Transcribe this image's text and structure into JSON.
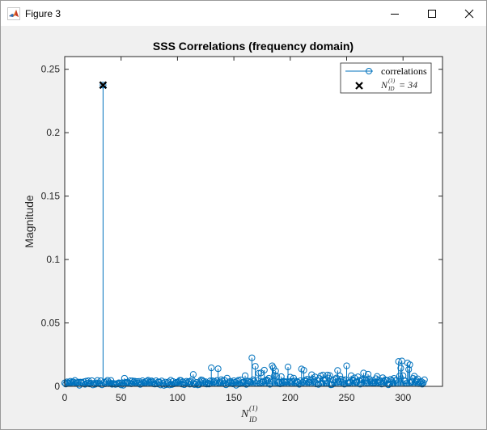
{
  "window": {
    "title": "Figure 3",
    "icons": {
      "app": "matlab-icon",
      "minimize": "minimize-icon",
      "maximize": "maximize-icon",
      "close": "close-icon"
    }
  },
  "chart_data": {
    "type": "stem",
    "title": "SSS Correlations (frequency domain)",
    "ylabel": "Magnitude",
    "xlabel": {
      "main": "N",
      "sub": "ID",
      "sup": "(1)"
    },
    "xlim": [
      0,
      335
    ],
    "ylim": [
      0,
      0.26
    ],
    "x_ticks": [
      0,
      50,
      100,
      150,
      200,
      250,
      300
    ],
    "y_ticks": [
      0,
      0.05,
      0.1,
      0.15,
      0.2,
      0.25
    ],
    "y_tick_labels": [
      "0",
      "0.05",
      "0.1",
      "0.15",
      "0.2",
      "0.25"
    ],
    "grid": false,
    "legend_position": "top-right",
    "series": [
      {
        "name": "correlations",
        "color": "#0072bd",
        "marker": "circle",
        "x_start": 0,
        "values": [
          0.0027,
          0.0018,
          0.0035,
          0.0028,
          0.0024,
          0.004,
          0.0031,
          0.0036,
          0.0034,
          0.0046,
          0.0027,
          0.0029,
          0.0034,
          0.0009,
          0.0034,
          0.0031,
          0.0023,
          0.0036,
          0.0016,
          0.0041,
          0.0026,
          0.0044,
          0.0019,
          0.0026,
          0.0045,
          0.0011,
          0.0024,
          0.0016,
          0.0027,
          0.0046,
          0.0027,
          0.002,
          0.0044,
          0.0012,
          0.2375,
          0.0034,
          0.002,
          0.0036,
          0.0047,
          0.0021,
          0.0029,
          0.0046,
          0.0016,
          0.0023,
          0.002,
          0.0015,
          0.0022,
          0.0019,
          0.0028,
          0.0025,
          0.0011,
          0.0029,
          0.0009,
          0.0064,
          0.0031,
          0.003,
          0.0031,
          0.0026,
          0.0044,
          0.002,
          0.0043,
          0.0034,
          0.0041,
          0.0027,
          0.0038,
          0.0025,
          0.0039,
          0.0015,
          0.0024,
          0.0044,
          0.0031,
          0.0025,
          0.0036,
          0.0042,
          0.0048,
          0.0031,
          0.0035,
          0.0043,
          0.0036,
          0.0019,
          0.0018,
          0.0044,
          0.002,
          0.0035,
          0.0034,
          0.0011,
          0.0042,
          0.0023,
          0.0008,
          0.0034,
          0.0013,
          0.0027,
          0.0035,
          0.0011,
          0.0048,
          0.0014,
          0.0038,
          0.002,
          0.0026,
          0.0032,
          0.0031,
          0.0036,
          0.0047,
          0.0046,
          0.0018,
          0.0035,
          0.0013,
          0.0027,
          0.004,
          0.0029,
          0.0038,
          0.0017,
          0.0037,
          0.0052,
          0.0094,
          0.0014,
          0.002,
          0.0031,
          0.0011,
          0.0013,
          0.0036,
          0.0051,
          0.0048,
          0.004,
          0.0021,
          0.0036,
          0.0018,
          0.0026,
          0.0018,
          0.0043,
          0.0146,
          0.0044,
          0.0035,
          0.0038,
          0.0023,
          0.0046,
          0.0139,
          0.0026,
          0.0035,
          0.0053,
          0.0042,
          0.0022,
          0.0045,
          0.0012,
          0.0065,
          0.0021,
          0.0035,
          0.004,
          0.0028,
          0.002,
          0.0044,
          0.0032,
          0.0009,
          0.004,
          0.0048,
          0.002,
          0.0051,
          0.0029,
          0.0031,
          0.0034,
          0.0084,
          0.0015,
          0.0024,
          0.0041,
          0.0037,
          0.0034,
          0.0225,
          0.0052,
          0.0041,
          0.0158,
          0.0022,
          0.0045,
          0.0103,
          0.0025,
          0.0106,
          0.0031,
          0.004,
          0.0128,
          0.0044,
          0.0051,
          0.0045,
          0.0064,
          0.0016,
          0.0042,
          0.0162,
          0.0146,
          0.0086,
          0.0122,
          0.0079,
          0.0028,
          0.0031,
          0.0019,
          0.0077,
          0.0029,
          0.0041,
          0.0036,
          0.0034,
          0.0037,
          0.0153,
          0.0037,
          0.0073,
          0.0022,
          0.0039,
          0.0065,
          0.0042,
          0.0024,
          0.0038,
          0.0031,
          0.0016,
          0.0044,
          0.0137,
          0.0033,
          0.0127,
          0.0049,
          0.0039,
          0.0056,
          0.0033,
          0.0036,
          0.0051,
          0.0092,
          0.0058,
          0.0039,
          0.0074,
          0.0019,
          0.0049,
          0.0015,
          0.0062,
          0.0082,
          0.0023,
          0.0089,
          0.0052,
          0.0045,
          0.0024,
          0.0089,
          0.0066,
          0.0085,
          0.0012,
          0.0014,
          0.0049,
          0.0029,
          0.0058,
          0.0066,
          0.0125,
          0.0038,
          0.0082,
          0.0057,
          0.0034,
          0.0048,
          0.0017,
          0.0053,
          0.0162,
          0.0028,
          0.0026,
          0.0032,
          0.0084,
          0.0051,
          0.0045,
          0.0067,
          0.0033,
          0.0034,
          0.0075,
          0.0046,
          0.0017,
          0.0051,
          0.0056,
          0.0105,
          0.0054,
          0.0046,
          0.0027,
          0.0096,
          0.0059,
          0.0043,
          0.003,
          0.0046,
          0.0025,
          0.0031,
          0.0061,
          0.0078,
          0.003,
          0.0049,
          0.0037,
          0.0018,
          0.0068,
          0.0039,
          0.0052,
          0.0047,
          0.0047,
          0.0012,
          0.0018,
          0.0055,
          0.0045,
          0.0021,
          0.0063,
          0.0045,
          0.0046,
          0.0022,
          0.0196,
          0.0082,
          0.0143,
          0.02,
          0.0084,
          0.0045,
          0.0043,
          0.0024,
          0.0184,
          0.0133,
          0.0171,
          0.0032,
          0.0039,
          0.0063,
          0.008,
          0.0036,
          0.0045,
          0.0059,
          0.0021,
          0.0033,
          0.004,
          0.0017,
          0.0028,
          0.0052
        ]
      },
      {
        "name": "N_ID^(1) = 34",
        "legend_label": {
          "main": "N",
          "sub": "ID",
          "sup": "(1)",
          "rest": " = 34"
        },
        "marker": "x",
        "color": "#000000",
        "x": [
          34
        ],
        "y": [
          0.2375
        ]
      }
    ]
  }
}
